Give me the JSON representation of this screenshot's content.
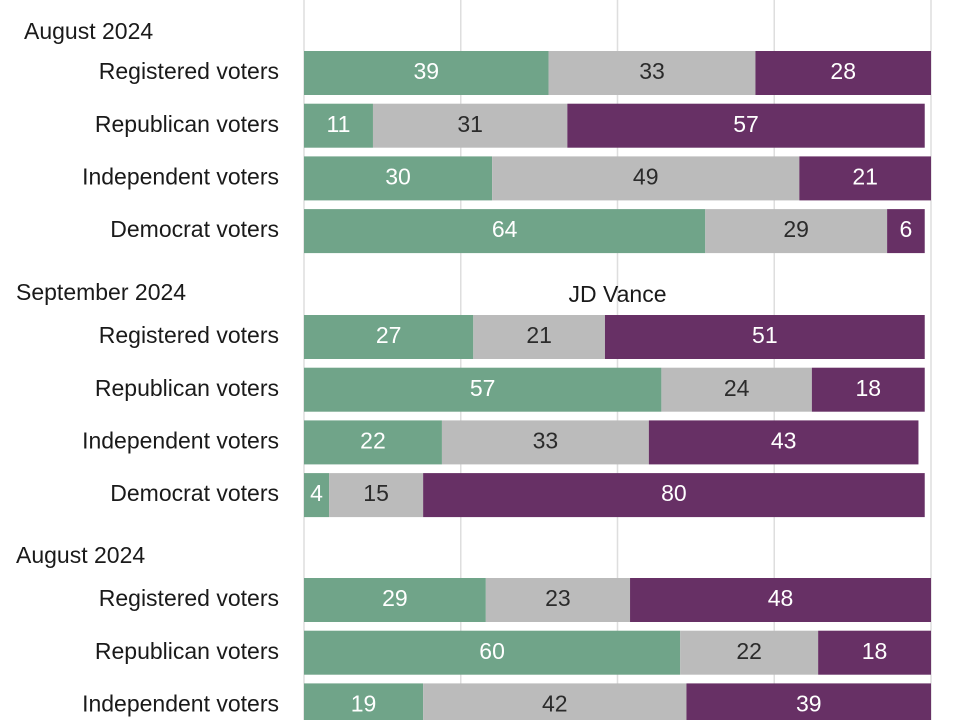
{
  "colors": {
    "series_1": "#70a489",
    "series_2": "#bbbbbb",
    "series_3": "#673065",
    "gridline": "#dedede",
    "light_text": "#ffffff",
    "dark_text": "#2b2b2b"
  },
  "chart_data": {
    "type": "bar",
    "orientation": "horizontal",
    "stacked": true,
    "title": "",
    "xlabel": "",
    "ylabel": "",
    "xlim": [
      0,
      100
    ],
    "grid": true,
    "legend": "none",
    "groups": [
      {
        "title": "August 2024",
        "subtitle": "",
        "categories": [
          "Registered voters",
          "Republican voters",
          "Independent voters",
          "Democrat voters"
        ],
        "series": [
          {
            "values": [
              39,
              11,
              30,
              64
            ]
          },
          {
            "values": [
              33,
              31,
              49,
              29
            ]
          },
          {
            "values": [
              28,
              57,
              21,
              6
            ]
          }
        ]
      },
      {
        "title": "September 2024",
        "subtitle": "JD Vance",
        "categories": [
          "Registered voters",
          "Republican voters",
          "Independent voters",
          "Democrat voters"
        ],
        "series": [
          {
            "values": [
              27,
              57,
              22,
              4
            ]
          },
          {
            "values": [
              21,
              24,
              33,
              15
            ]
          },
          {
            "values": [
              51,
              18,
              43,
              80
            ]
          }
        ]
      },
      {
        "title": "August 2024",
        "subtitle": "",
        "categories": [
          "Registered voters",
          "Republican voters",
          "Independent voters"
        ],
        "series": [
          {
            "values": [
              29,
              60,
              19
            ]
          },
          {
            "values": [
              23,
              22,
              42
            ]
          },
          {
            "values": [
              48,
              18,
              39
            ]
          }
        ]
      }
    ]
  }
}
